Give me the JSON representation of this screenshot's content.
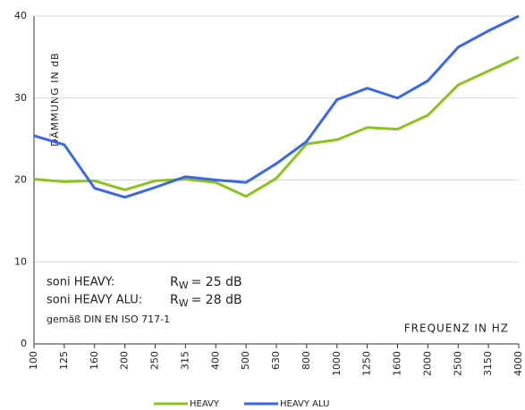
{
  "chart_data": {
    "type": "line",
    "y_label": "DÄMMUNG IN dB",
    "x_label": "FREQUENZ IN HZ",
    "categories": [
      "100",
      "125",
      "160",
      "200",
      "250",
      "315",
      "400",
      "500",
      "630",
      "800",
      "1000",
      "1250",
      "1600",
      "2000",
      "2500",
      "3150",
      "4000"
    ],
    "series": [
      {
        "name": "HEAVY",
        "color": "#8dc21f",
        "values": [
          20.1,
          19.8,
          19.9,
          18.8,
          19.9,
          20.1,
          19.7,
          18.0,
          20.2,
          24.4,
          24.9,
          26.4,
          26.2,
          27.9,
          31.6,
          33.3,
          35.0
        ]
      },
      {
        "name": "HEAVY ALU",
        "color": "#3a66e8",
        "values": [
          25.4,
          24.3,
          19.0,
          17.9,
          19.1,
          20.4,
          20.0,
          19.7,
          22.0,
          24.7,
          29.8,
          31.2,
          30.0,
          32.1,
          36.2,
          38.2,
          40.0
        ]
      }
    ],
    "ylim": [
      0,
      40
    ],
    "yticks": [
      0,
      10,
      20,
      30,
      40
    ],
    "grid": true,
    "annotations": [
      {
        "name": "soni HEAVY:",
        "symbol": "R",
        "subscript": "W",
        "rating": "= 25 dB"
      },
      {
        "name": "soni HEAVY ALU:",
        "symbol": "R",
        "subscript": "W",
        "rating": "= 28 dB"
      }
    ],
    "note": "gemäß DIN EN ISO 717-1",
    "legend": "bottom"
  }
}
